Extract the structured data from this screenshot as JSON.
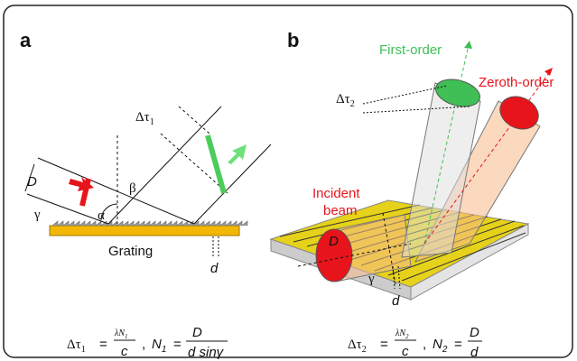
{
  "panel_a": {
    "label": "a",
    "beam_width": "D",
    "angle_alpha": "α",
    "angle_beta": "β",
    "angle_gamma": "γ",
    "delay": {
      "symbol": "Δτ",
      "sub": "1"
    },
    "grating": "Grating",
    "period": "d",
    "formula": {
      "lhs": "Δτ",
      "lhs_sub": "1",
      "eq": "=",
      "frac_num": "λN",
      "frac_num_sub": "1",
      "frac_den": "c",
      "comma": ",",
      "n": "N",
      "n_sub": "1",
      "eq2": "=",
      "rhs_num": "D",
      "rhs_den": "d sinγ"
    }
  },
  "panel_b": {
    "label": "b",
    "first_order": "First-order",
    "zeroth_order": "Zeroth-order",
    "delay": {
      "symbol": "Δτ",
      "sub": "2"
    },
    "incident": [
      "Incident",
      "beam"
    ],
    "beam_width": "D",
    "angle_gamma": "γ",
    "period": "d",
    "formula": {
      "lhs": "Δτ",
      "lhs_sub": "2",
      "eq": "=",
      "frac_num": "λN",
      "frac_num_sub": "2",
      "frac_den": "c",
      "comma": ",",
      "n": "N",
      "n_sub": "2",
      "eq2": "=",
      "rhs_num": "D",
      "rhs_den": "d"
    }
  }
}
